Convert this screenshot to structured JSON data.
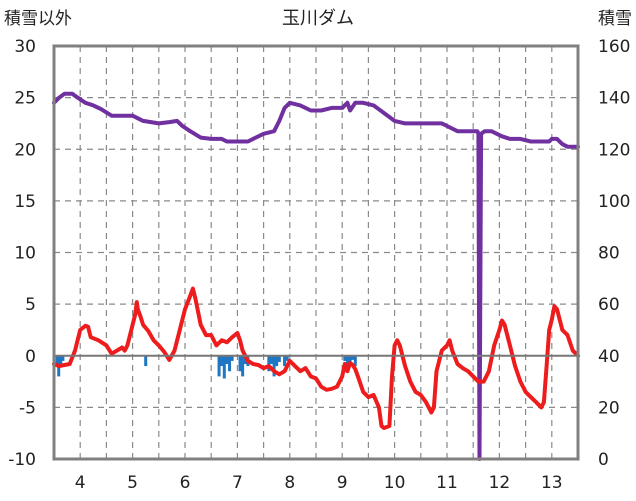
{
  "chart_data": {
    "type": "line",
    "title": "玉川ダム",
    "left_axis": {
      "label": "積雪以外",
      "range": [
        -10,
        30
      ],
      "ticks": [
        30,
        25,
        20,
        15,
        10,
        5,
        0,
        -5,
        -10
      ]
    },
    "right_axis": {
      "label": "積雪",
      "range": [
        0,
        160
      ],
      "ticks": [
        160,
        140,
        120,
        100,
        80,
        60,
        40,
        20,
        0
      ]
    },
    "x_axis": {
      "range": [
        3.5,
        13.5
      ],
      "tick_labels": [
        "4",
        "5",
        "6",
        "7",
        "8",
        "9",
        "10",
        "11",
        "12",
        "13"
      ],
      "ticks": [
        4,
        5,
        6,
        7,
        8,
        9,
        10,
        11,
        12,
        13
      ]
    },
    "grid": true,
    "colors": {
      "temperature": "#ee1c1c",
      "snow_depth": "#7030a0",
      "precipitation": "#1f77c4",
      "frame": "#808080",
      "grid": "#8a8a8a"
    },
    "series": [
      {
        "axis": "right",
        "color": "#7030a0",
        "points": [
          [
            3.5,
            138
          ],
          [
            3.6,
            140
          ],
          [
            3.7,
            141.5
          ],
          [
            3.85,
            141.5
          ],
          [
            3.95,
            140
          ],
          [
            4.1,
            138
          ],
          [
            4.25,
            137
          ],
          [
            4.4,
            135.5
          ],
          [
            4.6,
            133
          ],
          [
            4.8,
            133
          ],
          [
            5.0,
            133
          ],
          [
            5.2,
            131
          ],
          [
            5.5,
            130
          ],
          [
            5.7,
            130.5
          ],
          [
            5.85,
            131
          ],
          [
            5.95,
            129
          ],
          [
            6.1,
            127
          ],
          [
            6.3,
            124.5
          ],
          [
            6.5,
            124
          ],
          [
            6.7,
            124
          ],
          [
            6.8,
            123
          ],
          [
            7.0,
            123
          ],
          [
            7.2,
            123
          ],
          [
            7.3,
            124
          ],
          [
            7.5,
            126
          ],
          [
            7.7,
            127
          ],
          [
            7.8,
            131
          ],
          [
            7.9,
            136
          ],
          [
            8.0,
            138
          ],
          [
            8.2,
            137
          ],
          [
            8.4,
            135
          ],
          [
            8.6,
            135
          ],
          [
            8.8,
            136
          ],
          [
            9.0,
            136
          ],
          [
            9.1,
            138
          ],
          [
            9.15,
            135
          ],
          [
            9.25,
            138
          ],
          [
            9.4,
            138
          ],
          [
            9.6,
            137
          ],
          [
            9.8,
            134
          ],
          [
            10.0,
            131
          ],
          [
            10.2,
            130
          ],
          [
            10.4,
            130
          ],
          [
            10.6,
            130
          ],
          [
            10.9,
            130
          ],
          [
            11.0,
            129
          ],
          [
            11.2,
            127
          ],
          [
            11.4,
            127
          ],
          [
            11.58,
            127
          ],
          [
            11.6,
            126
          ],
          [
            11.62,
            0
          ],
          [
            11.65,
            126
          ],
          [
            11.72,
            127
          ],
          [
            11.85,
            127
          ],
          [
            11.95,
            126
          ],
          [
            12.05,
            125
          ],
          [
            12.2,
            124
          ],
          [
            12.4,
            124
          ],
          [
            12.6,
            123
          ],
          [
            12.8,
            123
          ],
          [
            12.95,
            123
          ],
          [
            13.0,
            124
          ],
          [
            13.1,
            124
          ],
          [
            13.2,
            122
          ],
          [
            13.3,
            121
          ],
          [
            13.5,
            121
          ]
        ]
      },
      {
        "axis": "left",
        "color": "#ee1c1c",
        "points": [
          [
            3.5,
            -0.8
          ],
          [
            3.6,
            -1.0
          ],
          [
            3.7,
            -0.9
          ],
          [
            3.8,
            -0.8
          ],
          [
            3.9,
            0.5
          ],
          [
            4.0,
            2.5
          ],
          [
            4.1,
            2.9
          ],
          [
            4.15,
            2.8
          ],
          [
            4.2,
            1.8
          ],
          [
            4.35,
            1.5
          ],
          [
            4.5,
            1.0
          ],
          [
            4.6,
            0.2
          ],
          [
            4.7,
            0.5
          ],
          [
            4.8,
            0.8
          ],
          [
            4.85,
            0.5
          ],
          [
            4.9,
            1.0
          ],
          [
            5.0,
            3.0
          ],
          [
            5.05,
            4.0
          ],
          [
            5.08,
            5.2
          ],
          [
            5.1,
            4.5
          ],
          [
            5.15,
            3.8
          ],
          [
            5.2,
            3.0
          ],
          [
            5.3,
            2.4
          ],
          [
            5.4,
            1.5
          ],
          [
            5.5,
            1.0
          ],
          [
            5.6,
            0.4
          ],
          [
            5.7,
            -0.4
          ],
          [
            5.8,
            0.5
          ],
          [
            5.9,
            2.5
          ],
          [
            6.0,
            4.5
          ],
          [
            6.1,
            5.8
          ],
          [
            6.15,
            6.5
          ],
          [
            6.2,
            5.5
          ],
          [
            6.3,
            3.0
          ],
          [
            6.4,
            2.0
          ],
          [
            6.5,
            2.0
          ],
          [
            6.6,
            1.0
          ],
          [
            6.7,
            1.5
          ],
          [
            6.8,
            1.3
          ],
          [
            6.9,
            1.8
          ],
          [
            7.0,
            2.2
          ],
          [
            7.05,
            1.5
          ],
          [
            7.1,
            0.5
          ],
          [
            7.2,
            -0.5
          ],
          [
            7.3,
            -0.8
          ],
          [
            7.4,
            -0.9
          ],
          [
            7.5,
            -1.2
          ],
          [
            7.6,
            -1.0
          ],
          [
            7.7,
            -1.5
          ],
          [
            7.8,
            -1.8
          ],
          [
            7.9,
            -1.5
          ],
          [
            8.0,
            -0.5
          ],
          [
            8.1,
            -1.0
          ],
          [
            8.2,
            -1.5
          ],
          [
            8.3,
            -1.2
          ],
          [
            8.4,
            -2.0
          ],
          [
            8.5,
            -2.2
          ],
          [
            8.6,
            -3.0
          ],
          [
            8.7,
            -3.3
          ],
          [
            8.8,
            -3.2
          ],
          [
            8.9,
            -3.0
          ],
          [
            9.0,
            -2.0
          ],
          [
            9.05,
            -0.8
          ],
          [
            9.1,
            -1.5
          ],
          [
            9.15,
            -0.7
          ],
          [
            9.2,
            -0.9
          ],
          [
            9.25,
            -1.3
          ],
          [
            9.3,
            -2.0
          ],
          [
            9.4,
            -3.5
          ],
          [
            9.5,
            -4.0
          ],
          [
            9.6,
            -3.8
          ],
          [
            9.7,
            -5.0
          ],
          [
            9.75,
            -6.8
          ],
          [
            9.8,
            -7.0
          ],
          [
            9.9,
            -6.8
          ],
          [
            9.95,
            -2.0
          ],
          [
            10.0,
            1.0
          ],
          [
            10.05,
            1.5
          ],
          [
            10.1,
            1.0
          ],
          [
            10.2,
            -1.0
          ],
          [
            10.3,
            -2.5
          ],
          [
            10.4,
            -3.5
          ],
          [
            10.5,
            -3.8
          ],
          [
            10.6,
            -4.5
          ],
          [
            10.7,
            -5.5
          ],
          [
            10.75,
            -5.0
          ],
          [
            10.8,
            -1.5
          ],
          [
            10.9,
            0.5
          ],
          [
            11.0,
            1.0
          ],
          [
            11.05,
            1.5
          ],
          [
            11.1,
            0.5
          ],
          [
            11.2,
            -0.8
          ],
          [
            11.3,
            -1.2
          ],
          [
            11.4,
            -1.5
          ],
          [
            11.5,
            -2.0
          ],
          [
            11.6,
            -2.5
          ],
          [
            11.7,
            -2.5
          ],
          [
            11.8,
            -1.5
          ],
          [
            11.9,
            1.0
          ],
          [
            12.0,
            2.5
          ],
          [
            12.05,
            3.4
          ],
          [
            12.1,
            3.0
          ],
          [
            12.2,
            1.0
          ],
          [
            12.3,
            -1.0
          ],
          [
            12.4,
            -2.5
          ],
          [
            12.5,
            -3.5
          ],
          [
            12.6,
            -4.0
          ],
          [
            12.7,
            -4.5
          ],
          [
            12.8,
            -5.0
          ],
          [
            12.85,
            -4.5
          ],
          [
            12.9,
            -1.0
          ],
          [
            12.95,
            2.5
          ],
          [
            13.0,
            3.5
          ],
          [
            13.05,
            4.8
          ],
          [
            13.1,
            4.5
          ],
          [
            13.15,
            3.5
          ],
          [
            13.2,
            2.5
          ],
          [
            13.3,
            2.0
          ],
          [
            13.4,
            0.5
          ],
          [
            13.5,
            0.0
          ]
        ]
      },
      {
        "axis": "left",
        "color": "#1f77c4",
        "bars": [
          [
            3.56,
            -1.0
          ],
          [
            3.59,
            -2.0
          ],
          [
            3.63,
            -0.8
          ],
          [
            3.67,
            -0.5
          ],
          [
            5.25,
            -1.0
          ],
          [
            6.65,
            -2.0
          ],
          [
            6.7,
            -1.0
          ],
          [
            6.75,
            -2.2
          ],
          [
            6.8,
            -0.8
          ],
          [
            6.85,
            -1.5
          ],
          [
            6.9,
            -0.5
          ],
          [
            7.05,
            -1.5
          ],
          [
            7.1,
            -2.0
          ],
          [
            7.15,
            -0.8
          ],
          [
            7.2,
            -1.0
          ],
          [
            7.6,
            -1.5
          ],
          [
            7.65,
            -0.8
          ],
          [
            7.7,
            -2.0
          ],
          [
            7.75,
            -1.0
          ],
          [
            7.8,
            -0.6
          ],
          [
            7.9,
            -1.0
          ],
          [
            7.95,
            -0.5
          ],
          [
            9.05,
            -0.5
          ],
          [
            9.1,
            -1.2
          ],
          [
            9.15,
            -0.8
          ],
          [
            9.2,
            -0.4
          ],
          [
            9.25,
            -1.0
          ]
        ]
      }
    ]
  }
}
